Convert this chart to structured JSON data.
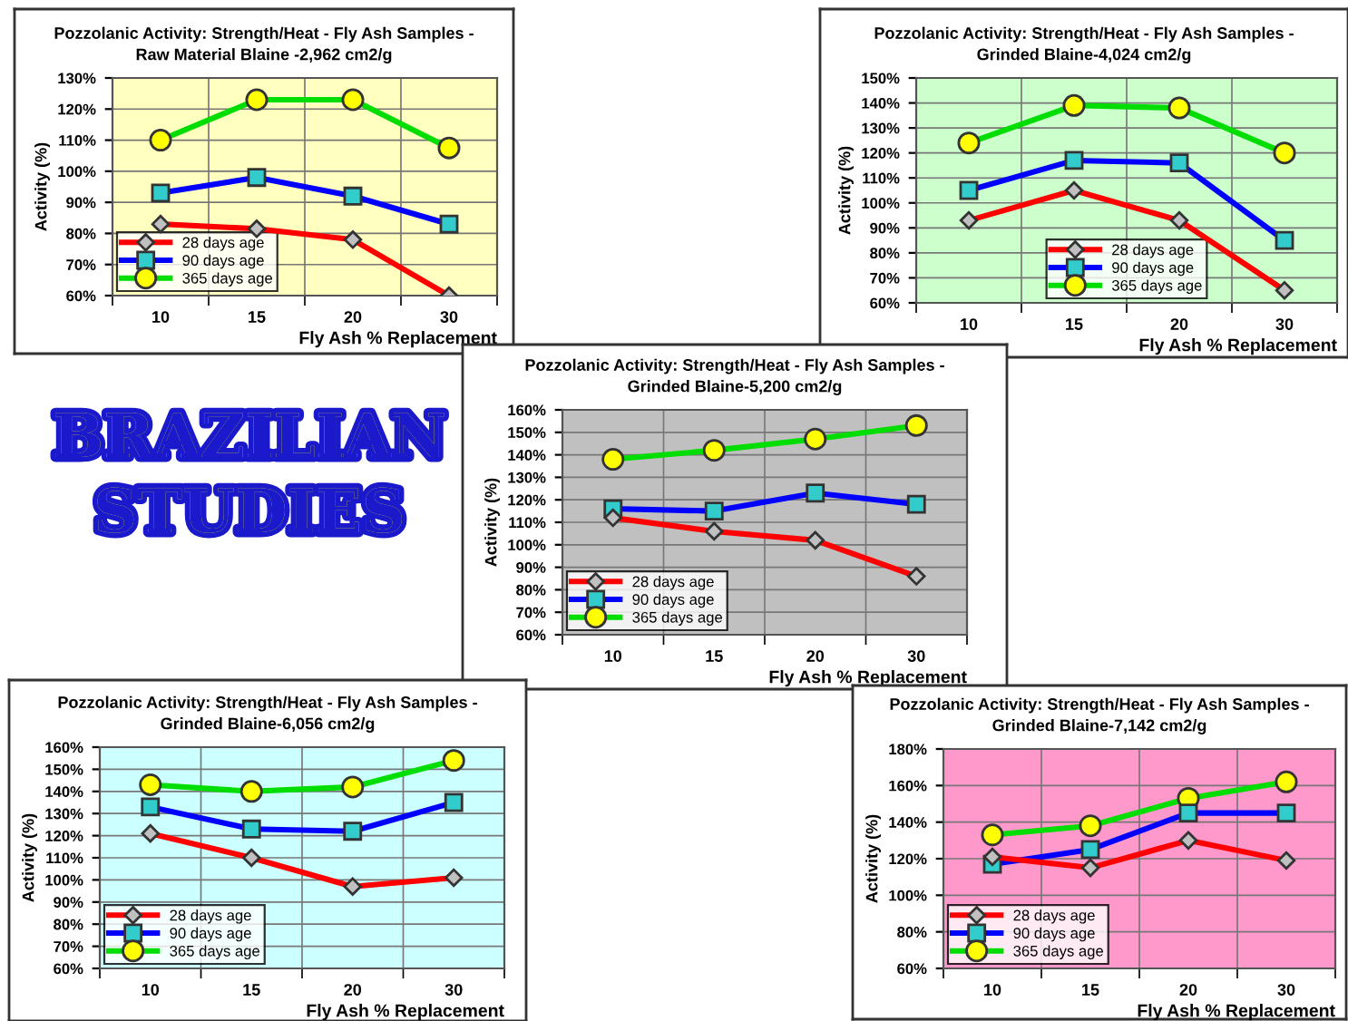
{
  "chart_data": [
    {
      "type": "line",
      "title": "Pozzolanic Activity: Strength/Heat - Fly Ash Samples -\nRaw Material Blaine -2,962 cm2/g",
      "xlabel": "Fly Ash % Replacement",
      "ylabel": "Activity (%)",
      "categories": [
        "10",
        "15",
        "20",
        "30"
      ],
      "ylim": [
        60,
        130
      ],
      "yticks": [
        {
          "value": 60,
          "label": "60%"
        },
        {
          "value": 70,
          "label": "70%"
        },
        {
          "value": 80,
          "label": "80%"
        },
        {
          "value": 90,
          "label": "90%"
        },
        {
          "value": 100,
          "label": "100%"
        },
        {
          "value": 110,
          "label": "110%"
        },
        {
          "value": 120,
          "label": "120%"
        },
        {
          "value": 130,
          "label": "130%"
        }
      ],
      "grid": true,
      "legend": "bottom left",
      "series": [
        {
          "name": "28 days age",
          "color": "#ff0000",
          "marker": "diamond",
          "values": [
            83,
            81.5,
            78,
            60
          ]
        },
        {
          "name": "90 days age",
          "color": "#0000ff",
          "marker": "square",
          "values": [
            93,
            98,
            92,
            83
          ]
        },
        {
          "name": "365 days age",
          "color": "#00dd00",
          "marker": "circle",
          "values": [
            110,
            123,
            123,
            107.5
          ]
        }
      ]
    },
    {
      "type": "line",
      "title": "Pozzolanic Activity: Strength/Heat - Fly Ash Samples -\nGrinded Blaine-4,024 cm2/g",
      "xlabel": "Fly Ash % Replacement",
      "ylabel": "Activity (%)",
      "categories": [
        "10",
        "15",
        "20",
        "30"
      ],
      "ylim": [
        60,
        150
      ],
      "yticks": [
        {
          "value": 60,
          "label": "60%"
        },
        {
          "value": 70,
          "label": "70%"
        },
        {
          "value": 80,
          "label": "80%"
        },
        {
          "value": 90,
          "label": "90%"
        },
        {
          "value": 100,
          "label": "100%"
        },
        {
          "value": 110,
          "label": "110%"
        },
        {
          "value": 120,
          "label": "120%"
        },
        {
          "value": 130,
          "label": "130%"
        },
        {
          "value": 140,
          "label": "140%"
        },
        {
          "value": 150,
          "label": "150%"
        }
      ],
      "grid": true,
      "legend": "bottom",
      "series": [
        {
          "name": "28 days age",
          "color": "#ff0000",
          "marker": "diamond",
          "values": [
            93,
            105,
            93,
            65
          ]
        },
        {
          "name": "90 days age",
          "color": "#0000ff",
          "marker": "square",
          "values": [
            105,
            117,
            116,
            85
          ]
        },
        {
          "name": "365 days age",
          "color": "#00dd00",
          "marker": "circle",
          "values": [
            124,
            139,
            138,
            120
          ]
        }
      ]
    },
    {
      "type": "other",
      "annotations": [
        "BRAZILIAN",
        "STUDIES"
      ]
    },
    {
      "type": "line",
      "title": "Pozzolanic Activity: Strength/Heat - Fly Ash Samples -\nGrinded Blaine-5,200 cm2/g",
      "xlabel": "Fly Ash % Replacement",
      "ylabel": "Activity (%)",
      "categories": [
        "10",
        "15",
        "20",
        "30"
      ],
      "ylim": [
        60,
        160
      ],
      "yticks": [
        {
          "value": 60,
          "label": "60%"
        },
        {
          "value": 70,
          "label": "70%"
        },
        {
          "value": 80,
          "label": "80%"
        },
        {
          "value": 90,
          "label": "90%"
        },
        {
          "value": 100,
          "label": "100%"
        },
        {
          "value": 110,
          "label": "110%"
        },
        {
          "value": 120,
          "label": "120%"
        },
        {
          "value": 130,
          "label": "130%"
        },
        {
          "value": 140,
          "label": "140%"
        },
        {
          "value": 150,
          "label": "150%"
        },
        {
          "value": 160,
          "label": "160%"
        }
      ],
      "grid": true,
      "legend": "bottom left",
      "series": [
        {
          "name": "28 days age",
          "color": "#ff0000",
          "marker": "diamond",
          "values": [
            112,
            106,
            102,
            86
          ]
        },
        {
          "name": "90 days age",
          "color": "#0000ff",
          "marker": "square",
          "values": [
            116,
            115,
            123,
            118
          ]
        },
        {
          "name": "365 days age",
          "color": "#00dd00",
          "marker": "circle",
          "values": [
            138,
            142,
            147,
            153
          ]
        }
      ]
    },
    {
      "type": "line",
      "title": "Pozzolanic Activity: Strength/Heat - Fly Ash Samples -\nGrinded Blaine-6,056 cm2/g",
      "xlabel": "Fly Ash % Replacement",
      "ylabel": "Activity (%)",
      "categories": [
        "10",
        "15",
        "20",
        "30"
      ],
      "ylim": [
        60,
        160
      ],
      "yticks": [
        {
          "value": 60,
          "label": "60%"
        },
        {
          "value": 70,
          "label": "70%"
        },
        {
          "value": 80,
          "label": "80%"
        },
        {
          "value": 90,
          "label": "90%"
        },
        {
          "value": 100,
          "label": "100%"
        },
        {
          "value": 110,
          "label": "110%"
        },
        {
          "value": 120,
          "label": "120%"
        },
        {
          "value": 130,
          "label": "130%"
        },
        {
          "value": 140,
          "label": "140%"
        },
        {
          "value": 150,
          "label": "150%"
        },
        {
          "value": 160,
          "label": "160%"
        }
      ],
      "grid": true,
      "legend": "bottom left",
      "series": [
        {
          "name": "28 days age",
          "color": "#ff0000",
          "marker": "diamond",
          "values": [
            121,
            110,
            97,
            101
          ]
        },
        {
          "name": "90 days age",
          "color": "#0000ff",
          "marker": "square",
          "values": [
            133,
            123,
            122,
            135
          ]
        },
        {
          "name": "365 days age",
          "color": "#00dd00",
          "marker": "circle",
          "values": [
            143,
            140,
            142,
            154
          ]
        }
      ]
    },
    {
      "type": "line",
      "title": "Pozzolanic Activity: Strength/Heat - Fly Ash Samples -\nGrinded Blaine-7,142 cm2/g",
      "xlabel": "Fly Ash % Replacement",
      "ylabel": "Activity (%)",
      "categories": [
        "10",
        "15",
        "20",
        "30"
      ],
      "ylim": [
        60,
        180
      ],
      "yticks": [
        {
          "value": 60,
          "label": "60%"
        },
        {
          "value": 80,
          "label": "80%"
        },
        {
          "value": 100,
          "label": "100%"
        },
        {
          "value": 120,
          "label": "120%"
        },
        {
          "value": 140,
          "label": "140%"
        },
        {
          "value": 160,
          "label": "160%"
        },
        {
          "value": 180,
          "label": "180%"
        }
      ],
      "grid": true,
      "legend": "bottom left",
      "series": [
        {
          "name": "28 days age",
          "color": "#ff0000",
          "marker": "diamond",
          "values": [
            121,
            115,
            130,
            119
          ]
        },
        {
          "name": "90 days age",
          "color": "#0000ff",
          "marker": "square",
          "values": [
            117,
            125,
            145,
            145
          ]
        },
        {
          "name": "365 days age",
          "color": "#00dd00",
          "marker": "circle",
          "values": [
            133,
            138,
            153,
            162
          ]
        }
      ]
    }
  ]
}
